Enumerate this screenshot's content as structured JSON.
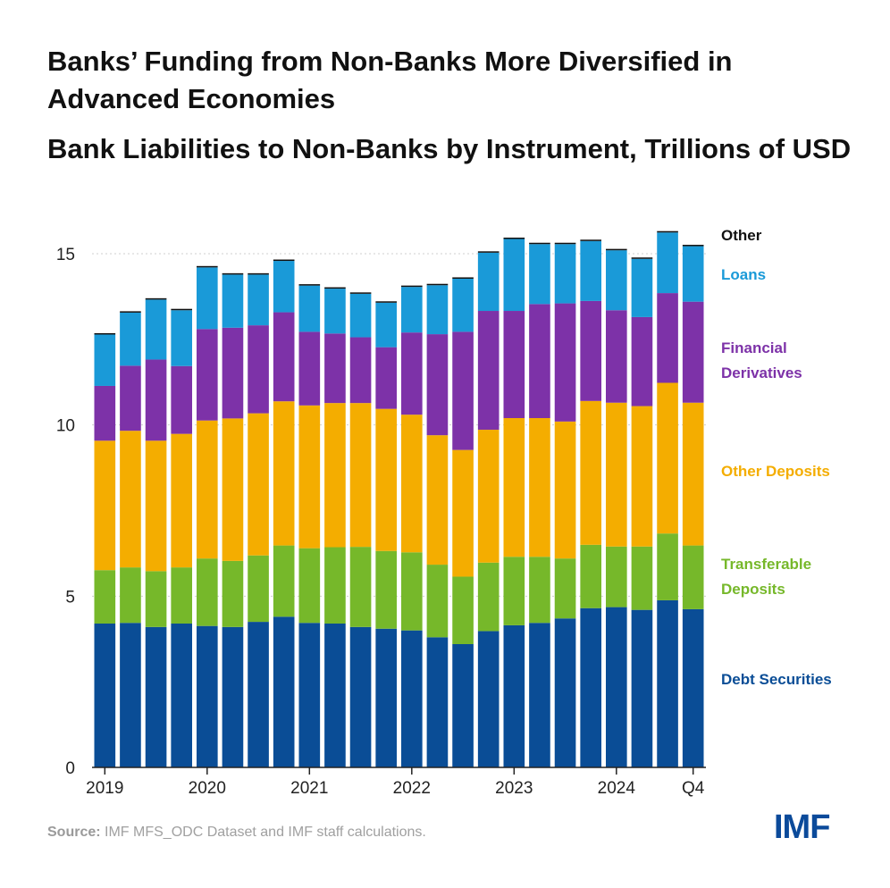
{
  "title": "Banks’ Funding from Non-Banks More Diversified in Advanced Economies",
  "subtitle": "Bank Liabilities to Non-Banks by Instrument, Trillions of USD",
  "source_label": "Source:",
  "source_text": "IMF MFS_ODC Dataset and IMF staff calculations.",
  "logo": "IMF",
  "chart_data": {
    "type": "bar",
    "stacked": true,
    "title": "Banks’ Funding from Non-Banks More Diversified in Advanced Economies",
    "subtitle": "Bank Liabilities to Non-Banks by Instrument, Trillions of USD",
    "xlabel": "",
    "ylabel": "",
    "ylim": [
      0,
      16
    ],
    "yticks": [
      0,
      5,
      10,
      15
    ],
    "grid": true,
    "x_tick_labels": [
      {
        "label": "2019",
        "index": 0
      },
      {
        "label": "2020",
        "index": 4
      },
      {
        "label": "2021",
        "index": 8
      },
      {
        "label": "2022",
        "index": 12
      },
      {
        "label": "2023",
        "index": 16
      },
      {
        "label": "2024",
        "index": 20
      },
      {
        "label": "Q4",
        "index": 23
      }
    ],
    "categories": [
      "2019Q1",
      "2019Q2",
      "2019Q3",
      "2019Q4",
      "2020Q1",
      "2020Q2",
      "2020Q3",
      "2020Q4",
      "2021Q1",
      "2021Q2",
      "2021Q3",
      "2021Q4",
      "2022Q1",
      "2022Q2",
      "2022Q3",
      "2022Q4",
      "2023Q1",
      "2023Q2",
      "2023Q3",
      "2023Q4",
      "2024Q1",
      "2024Q2",
      "2024Q3",
      "2024Q4"
    ],
    "series": [
      {
        "name": "Debt Securities",
        "color": "#0a4d96",
        "values": [
          4.2,
          4.22,
          4.1,
          4.2,
          4.13,
          4.1,
          4.25,
          4.4,
          4.22,
          4.2,
          4.1,
          4.05,
          4.0,
          3.8,
          3.6,
          3.98,
          4.15,
          4.22,
          4.35,
          4.65,
          4.68,
          4.6,
          4.88,
          4.62
        ]
      },
      {
        "name": "Transferable Deposits",
        "color": "#76b82a",
        "values": [
          1.56,
          1.62,
          1.63,
          1.64,
          1.97,
          1.93,
          1.94,
          2.08,
          2.18,
          2.23,
          2.34,
          2.27,
          2.28,
          2.12,
          1.97,
          2.0,
          2.0,
          1.93,
          1.75,
          1.85,
          1.77,
          1.85,
          1.95,
          1.86
        ]
      },
      {
        "name": "Other Deposits",
        "color": "#f4ad00",
        "values": [
          3.78,
          3.99,
          3.81,
          3.9,
          4.03,
          4.16,
          4.15,
          4.21,
          4.17,
          4.21,
          4.2,
          4.15,
          4.02,
          3.78,
          3.7,
          3.88,
          4.05,
          4.05,
          4.0,
          4.2,
          4.2,
          4.1,
          4.4,
          4.17
        ]
      },
      {
        "name": "Financial Derivatives",
        "color": "#7d32a8",
        "values": [
          1.6,
          1.9,
          2.37,
          1.98,
          2.67,
          2.65,
          2.57,
          2.6,
          2.15,
          2.03,
          1.92,
          1.8,
          2.4,
          2.95,
          3.45,
          3.47,
          3.13,
          3.33,
          3.45,
          2.92,
          2.7,
          2.6,
          2.62,
          2.95
        ]
      },
      {
        "name": "Loans",
        "color": "#1a9ad8",
        "values": [
          1.5,
          1.55,
          1.75,
          1.63,
          1.8,
          1.55,
          1.48,
          1.5,
          1.35,
          1.31,
          1.27,
          1.3,
          1.33,
          1.43,
          1.55,
          1.7,
          2.1,
          1.75,
          1.73,
          1.75,
          1.75,
          1.7,
          1.77,
          1.62
        ]
      },
      {
        "name": "Other",
        "color": "#111111",
        "values": [
          0.04,
          0.04,
          0.04,
          0.04,
          0.04,
          0.04,
          0.04,
          0.04,
          0.04,
          0.04,
          0.04,
          0.04,
          0.04,
          0.04,
          0.04,
          0.04,
          0.04,
          0.04,
          0.04,
          0.04,
          0.04,
          0.04,
          0.04,
          0.04
        ]
      }
    ],
    "legend": [
      {
        "label": "Other",
        "color": "#111111"
      },
      {
        "label": "Loans",
        "color": "#1a9ad8"
      },
      {
        "label": "Financial Derivatives",
        "color": "#7d32a8"
      },
      {
        "label": "Other Deposits",
        "color": "#f4ad00"
      },
      {
        "label": "Transferable Deposits",
        "color": "#76b82a"
      },
      {
        "label": "Debt Securities",
        "color": "#0a4d96"
      }
    ],
    "legend_placement": "right"
  }
}
